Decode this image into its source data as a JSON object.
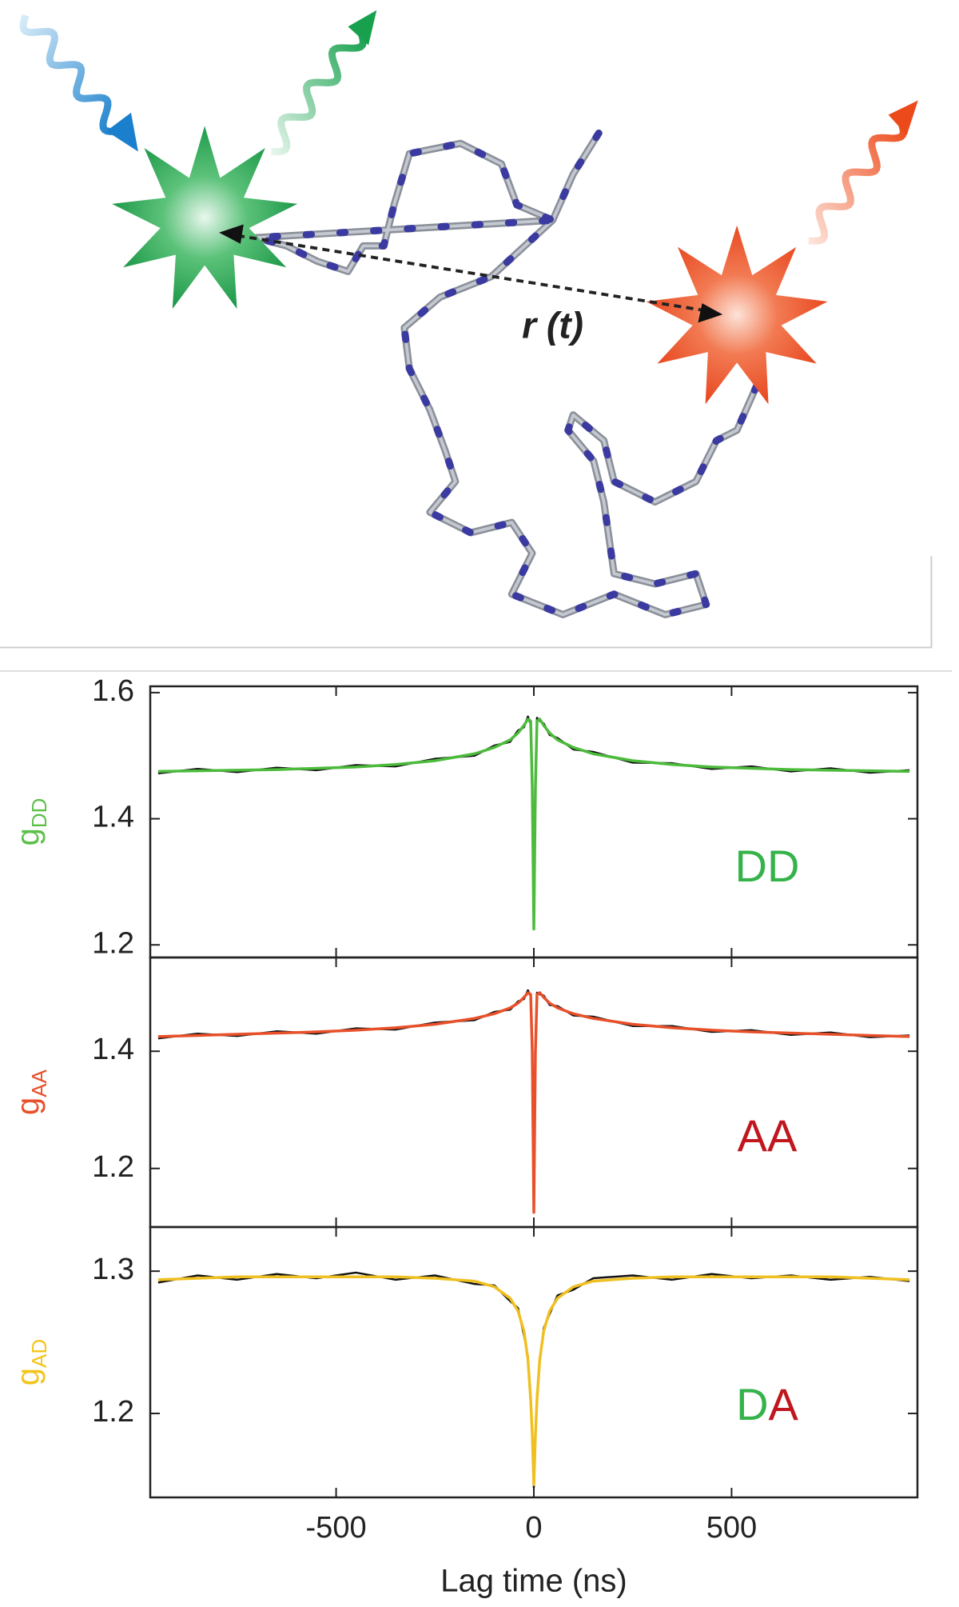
{
  "illustration": {
    "label": "r (t)"
  },
  "chart_data": [
    {
      "type": "line",
      "ylabel": {
        "main": "g",
        "sub": "DD",
        "color": "#5cc04a"
      },
      "annotation": [
        {
          "text": "DD",
          "color": "#35b34a"
        }
      ],
      "x": [
        -950,
        -850,
        -750,
        -650,
        -550,
        -450,
        -350,
        -250,
        -150,
        -100,
        -60,
        -40,
        -25,
        -15,
        -8,
        -4,
        0,
        4,
        8,
        15,
        25,
        40,
        60,
        100,
        150,
        250,
        350,
        450,
        550,
        650,
        750,
        850,
        950
      ],
      "xlim": [
        -970,
        970
      ],
      "xticks": [
        -500,
        0,
        500
      ],
      "ylim": [
        1.18,
        1.61
      ],
      "yticks": [
        1.2,
        1.4,
        1.6
      ],
      "series": [
        {
          "color": "#111111",
          "values": [
            1.472,
            1.479,
            1.474,
            1.481,
            1.477,
            1.485,
            1.483,
            1.495,
            1.5,
            1.516,
            1.522,
            1.54,
            1.545,
            1.562,
            1.55,
            1.44,
            1.23,
            1.46,
            1.56,
            1.555,
            1.551,
            1.533,
            1.528,
            1.51,
            1.506,
            1.489,
            1.488,
            1.479,
            1.483,
            1.475,
            1.48,
            1.473,
            1.477
          ]
        },
        {
          "color": "#4cbb3c",
          "values": [
            1.475,
            1.476,
            1.477,
            1.478,
            1.48,
            1.482,
            1.486,
            1.492,
            1.503,
            1.513,
            1.525,
            1.536,
            1.548,
            1.558,
            1.555,
            1.45,
            1.225,
            1.45,
            1.555,
            1.558,
            1.548,
            1.536,
            1.525,
            1.513,
            1.503,
            1.492,
            1.486,
            1.482,
            1.48,
            1.478,
            1.477,
            1.476,
            1.475
          ]
        }
      ]
    },
    {
      "type": "line",
      "ylabel": {
        "main": "g",
        "sub": "AA",
        "color": "#e8502a"
      },
      "annotation": [
        {
          "text": "AA",
          "color": "#c0161e"
        }
      ],
      "x": [
        -950,
        -850,
        -750,
        -650,
        -550,
        -450,
        -350,
        -250,
        -150,
        -100,
        -60,
        -40,
        -25,
        -15,
        -8,
        -4,
        0,
        4,
        8,
        15,
        25,
        40,
        60,
        100,
        150,
        250,
        350,
        450,
        550,
        650,
        750,
        850,
        950
      ],
      "xlim": [
        -970,
        970
      ],
      "xticks": [
        -500,
        0,
        500
      ],
      "ylim": [
        1.1,
        1.56
      ],
      "yticks": [
        1.2,
        1.4
      ],
      "series": [
        {
          "color": "#111111",
          "values": [
            1.422,
            1.43,
            1.426,
            1.434,
            1.43,
            1.439,
            1.437,
            1.449,
            1.453,
            1.467,
            1.471,
            1.485,
            1.489,
            1.504,
            1.494,
            1.39,
            1.13,
            1.41,
            1.5,
            1.497,
            1.495,
            1.479,
            1.477,
            1.461,
            1.459,
            1.443,
            1.443,
            1.433,
            1.436,
            1.428,
            1.432,
            1.424,
            1.427
          ]
        },
        {
          "color": "#e8502a",
          "values": [
            1.425,
            1.427,
            1.429,
            1.431,
            1.433,
            1.436,
            1.44,
            1.446,
            1.456,
            1.464,
            1.474,
            1.482,
            1.492,
            1.5,
            1.497,
            1.4,
            1.125,
            1.4,
            1.497,
            1.5,
            1.492,
            1.482,
            1.474,
            1.464,
            1.456,
            1.446,
            1.44,
            1.436,
            1.433,
            1.431,
            1.429,
            1.427,
            1.425
          ]
        }
      ]
    },
    {
      "type": "line",
      "ylabel": {
        "main": "g",
        "sub": "AD",
        "color": "#f3c41a"
      },
      "annotation": [
        {
          "text": "D",
          "color": "#35b34a"
        },
        {
          "text": "A",
          "color": "#c0161e"
        }
      ],
      "xlabel": "Lag time (ns)",
      "x": [
        -950,
        -850,
        -750,
        -650,
        -550,
        -450,
        -350,
        -250,
        -150,
        -100,
        -60,
        -40,
        -25,
        -15,
        -8,
        -4,
        0,
        4,
        8,
        15,
        25,
        40,
        60,
        100,
        150,
        250,
        350,
        450,
        550,
        650,
        750,
        850,
        950
      ],
      "xlim": [
        -970,
        970
      ],
      "xticks": [
        -500,
        0,
        500
      ],
      "ylim": [
        1.141,
        1.331
      ],
      "yticks": [
        1.2,
        1.3
      ],
      "series": [
        {
          "color": "#111111",
          "values": [
            1.292,
            1.297,
            1.294,
            1.298,
            1.295,
            1.299,
            1.294,
            1.297,
            1.291,
            1.29,
            1.279,
            1.274,
            1.255,
            1.24,
            1.207,
            1.188,
            1.148,
            1.182,
            1.213,
            1.236,
            1.26,
            1.27,
            1.283,
            1.287,
            1.295,
            1.297,
            1.294,
            1.298,
            1.295,
            1.297,
            1.294,
            1.296,
            1.293
          ]
        },
        {
          "color": "#f0c020",
          "values": [
            1.294,
            1.295,
            1.296,
            1.296,
            1.296,
            1.296,
            1.296,
            1.295,
            1.293,
            1.289,
            1.281,
            1.272,
            1.258,
            1.238,
            1.21,
            1.185,
            1.15,
            1.185,
            1.21,
            1.238,
            1.258,
            1.272,
            1.281,
            1.289,
            1.293,
            1.295,
            1.296,
            1.296,
            1.296,
            1.296,
            1.296,
            1.295,
            1.294
          ]
        }
      ]
    }
  ]
}
